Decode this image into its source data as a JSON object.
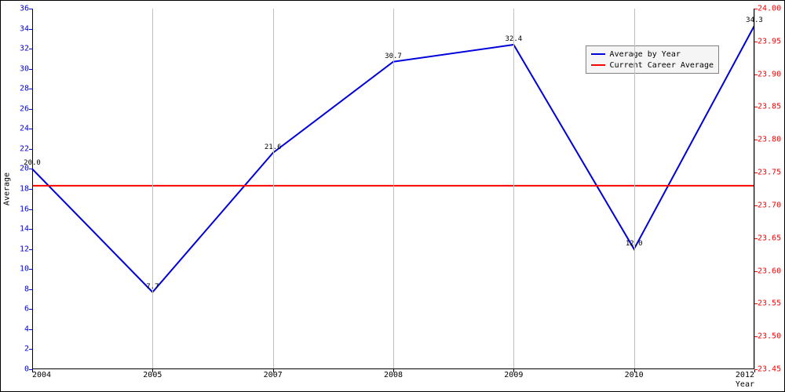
{
  "chart": {
    "type": "line-dual-axis",
    "xlabel": "Year",
    "ylabel_left": "Average",
    "background": "#ffffff",
    "grid_color": "#c0c0c0",
    "left_axis": {
      "color": "#0000dd",
      "min": 0,
      "max": 36,
      "tick_step": 2,
      "ticks": [
        "0",
        "2",
        "4",
        "6",
        "8",
        "10",
        "12",
        "14",
        "16",
        "18",
        "20",
        "22",
        "24",
        "26",
        "28",
        "30",
        "32",
        "34",
        "36"
      ]
    },
    "right_axis": {
      "color": "#ff0000",
      "min": 23.45,
      "max": 24.0,
      "ticks": [
        "23.45",
        "23.50",
        "23.55",
        "23.60",
        "23.65",
        "23.70",
        "23.75",
        "23.80",
        "23.85",
        "23.90",
        "23.95",
        "24.00"
      ]
    },
    "x_axis": {
      "categories": [
        "2004",
        "2005",
        "2007",
        "2008",
        "2009",
        "2010",
        "2012"
      ]
    },
    "series": [
      {
        "name": "Average by Year",
        "color": "#0000dd",
        "width": 2,
        "axis": "left",
        "values": [
          20.0,
          7.7,
          21.6,
          30.7,
          32.4,
          12.0,
          34.3
        ],
        "labels": [
          "20.0",
          "7.7",
          "21.6",
          "30.7",
          "32.4",
          "12.0",
          "34.3"
        ]
      },
      {
        "name": "Current Career Average",
        "color": "#ff0000",
        "width": 2,
        "axis": "right",
        "constant": 23.73
      }
    ],
    "legend": {
      "items": [
        {
          "label": "Average by Year",
          "color": "#0000dd"
        },
        {
          "label": "Current Career Average",
          "color": "#ff0000"
        }
      ],
      "font": "monospace",
      "bg": "#f5f5f5",
      "border": "#808080"
    }
  }
}
